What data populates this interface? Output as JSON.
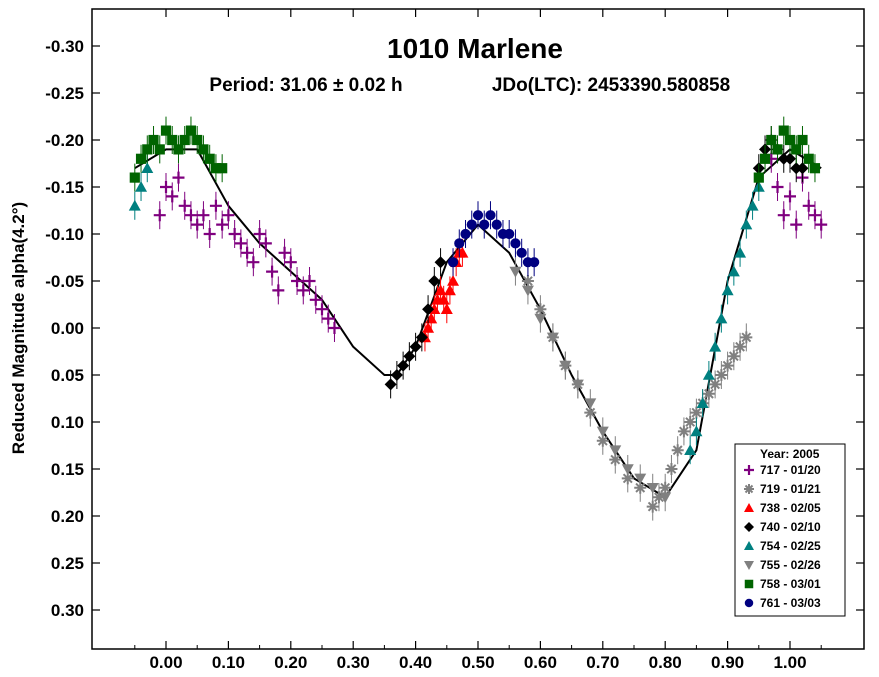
{
  "chart_data": {
    "type": "scatter",
    "title": "1010 Marlene",
    "subtitle_period": "Period: 31.06 ± 0.02 h",
    "subtitle_epoch": "JDo(LTC): 2453390.580858",
    "xlabel": "",
    "ylabel": "Reduced Magnitude alpha(4.2°)",
    "xlim": [
      -0.06,
      1.07
    ],
    "ylim": [
      0.33,
      -0.33
    ],
    "y_inverted": true,
    "x_ticks": [
      "0.00",
      "0.10",
      "0.20",
      "0.30",
      "0.40",
      "0.50",
      "0.60",
      "0.70",
      "0.80",
      "0.90",
      "1.00"
    ],
    "x_tick_values": [
      0,
      0.1,
      0.2,
      0.3,
      0.4,
      0.5,
      0.6,
      0.7,
      0.8,
      0.9,
      1.0
    ],
    "y_ticks": [
      "-0.30",
      "-0.25",
      "-0.20",
      "-0.15",
      "-0.10",
      "-0.05",
      "0.00",
      "0.05",
      "0.10",
      "0.15",
      "0.20",
      "0.25",
      "0.30"
    ],
    "y_tick_values": [
      -0.3,
      -0.25,
      -0.2,
      -0.15,
      -0.1,
      -0.05,
      0.0,
      0.05,
      0.1,
      0.15,
      0.2,
      0.25,
      0.3
    ],
    "grid": false,
    "legend_position": "bottom-right",
    "legend_title": "Year: 2005",
    "fit_curve": {
      "x": [
        -0.05,
        0.0,
        0.05,
        0.1,
        0.15,
        0.2,
        0.25,
        0.3,
        0.35,
        0.37,
        0.4,
        0.45,
        0.5,
        0.55,
        0.6,
        0.65,
        0.7,
        0.75,
        0.8,
        0.85,
        0.9,
        0.95,
        1.0,
        1.05
      ],
      "y": [
        -0.17,
        -0.19,
        -0.19,
        -0.13,
        -0.09,
        -0.06,
        -0.03,
        0.02,
        0.05,
        0.05,
        0.02,
        -0.07,
        -0.11,
        -0.08,
        -0.02,
        0.05,
        0.11,
        0.16,
        0.18,
        0.13,
        -0.05,
        -0.16,
        -0.19,
        -0.17
      ]
    },
    "series": [
      {
        "name": "717 - 01/20",
        "marker": "plus",
        "color": "#7f007f",
        "x": [
          -0.01,
          0.0,
          0.01,
          0.02,
          0.03,
          0.04,
          0.05,
          0.06,
          0.07,
          0.08,
          0.09,
          0.1,
          0.11,
          0.12,
          0.13,
          0.14,
          0.15,
          0.16,
          0.17,
          0.18,
          0.19,
          0.2,
          0.21,
          0.22,
          0.23,
          0.24,
          0.25,
          0.26,
          0.27,
          0.97,
          0.98,
          0.99,
          1.0,
          1.01,
          1.02,
          1.03,
          1.04,
          1.05
        ],
        "y": [
          -0.12,
          -0.15,
          -0.14,
          -0.16,
          -0.13,
          -0.12,
          -0.11,
          -0.12,
          -0.1,
          -0.13,
          -0.11,
          -0.12,
          -0.1,
          -0.09,
          -0.08,
          -0.07,
          -0.1,
          -0.09,
          -0.06,
          -0.04,
          -0.08,
          -0.07,
          -0.05,
          -0.04,
          -0.05,
          -0.03,
          -0.02,
          -0.01,
          0.0,
          -0.18,
          -0.15,
          -0.12,
          -0.14,
          -0.11,
          -0.16,
          -0.13,
          -0.12,
          -0.11
        ]
      },
      {
        "name": "719 - 01/21",
        "marker": "asterisk",
        "color": "#808080",
        "x": [
          0.58,
          0.6,
          0.62,
          0.64,
          0.66,
          0.68,
          0.7,
          0.72,
          0.74,
          0.76,
          0.78,
          0.79,
          0.8,
          0.81,
          0.82,
          0.83,
          0.84,
          0.85,
          0.86,
          0.87,
          0.88,
          0.89,
          0.9,
          0.91,
          0.92,
          0.93
        ],
        "y": [
          -0.05,
          -0.02,
          0.01,
          0.04,
          0.06,
          0.09,
          0.12,
          0.14,
          0.16,
          0.17,
          0.19,
          0.18,
          0.17,
          0.15,
          0.13,
          0.11,
          0.1,
          0.09,
          0.08,
          0.07,
          0.06,
          0.05,
          0.04,
          0.03,
          0.02,
          0.01
        ]
      },
      {
        "name": "738 - 02/05",
        "marker": "triangle-up",
        "color": "#ff0000",
        "x": [
          0.415,
          0.42,
          0.425,
          0.43,
          0.435,
          0.44,
          0.445,
          0.45,
          0.455,
          0.46,
          0.465,
          0.47,
          0.475
        ],
        "y": [
          0.01,
          0.0,
          -0.01,
          -0.02,
          -0.03,
          -0.04,
          -0.03,
          -0.02,
          -0.04,
          -0.05,
          -0.07,
          -0.08,
          -0.08
        ]
      },
      {
        "name": "740 - 02/10",
        "marker": "diamond",
        "color": "#000000",
        "x": [
          0.36,
          0.37,
          0.38,
          0.39,
          0.4,
          0.41,
          0.42,
          0.43,
          0.44,
          0.95,
          0.96,
          0.97,
          0.98,
          0.99,
          1.0,
          1.01,
          1.02
        ],
        "y": [
          0.06,
          0.05,
          0.04,
          0.03,
          0.02,
          0.01,
          -0.02,
          -0.05,
          -0.07,
          -0.17,
          -0.19,
          -0.2,
          -0.19,
          -0.18,
          -0.18,
          -0.17,
          -0.17
        ]
      },
      {
        "name": "754 - 02/25",
        "marker": "triangle-up",
        "color": "#008080",
        "x": [
          -0.05,
          -0.04,
          -0.03,
          0.84,
          0.85,
          0.86,
          0.87,
          0.88,
          0.89,
          0.9,
          0.91,
          0.92,
          0.93,
          0.94,
          0.95
        ],
        "y": [
          -0.13,
          -0.15,
          -0.17,
          0.13,
          0.11,
          0.08,
          0.05,
          0.02,
          -0.01,
          -0.04,
          -0.06,
          -0.08,
          -0.11,
          -0.13,
          -0.15
        ]
      },
      {
        "name": "755 - 02/26",
        "marker": "triangle-down",
        "color": "#808080",
        "x": [
          0.56,
          0.58,
          0.6,
          0.62,
          0.64,
          0.66,
          0.68,
          0.7,
          0.72,
          0.74,
          0.76,
          0.78,
          0.8
        ],
        "y": [
          -0.06,
          -0.04,
          -0.01,
          0.01,
          0.04,
          0.06,
          0.08,
          0.11,
          0.13,
          0.15,
          0.16,
          0.17,
          0.18
        ]
      },
      {
        "name": "758 - 03/01",
        "marker": "square",
        "color": "#006400",
        "x": [
          -0.05,
          -0.04,
          -0.03,
          -0.02,
          -0.01,
          0.0,
          0.01,
          0.02,
          0.03,
          0.04,
          0.05,
          0.06,
          0.07,
          0.08,
          0.09,
          0.95,
          0.96,
          0.97,
          0.98,
          0.99,
          1.0,
          1.01,
          1.02,
          1.03,
          1.04
        ],
        "y": [
          -0.16,
          -0.18,
          -0.19,
          -0.2,
          -0.19,
          -0.21,
          -0.2,
          -0.19,
          -0.2,
          -0.21,
          -0.2,
          -0.19,
          -0.18,
          -0.17,
          -0.17,
          -0.16,
          -0.18,
          -0.2,
          -0.19,
          -0.21,
          -0.2,
          -0.19,
          -0.2,
          -0.18,
          -0.17
        ]
      },
      {
        "name": "761 - 03/03",
        "marker": "circle",
        "color": "#000080",
        "x": [
          0.46,
          0.47,
          0.48,
          0.49,
          0.5,
          0.51,
          0.52,
          0.53,
          0.54,
          0.55,
          0.56,
          0.57,
          0.58,
          0.59
        ],
        "y": [
          -0.07,
          -0.09,
          -0.1,
          -0.11,
          -0.12,
          -0.11,
          -0.12,
          -0.11,
          -0.1,
          -0.1,
          -0.09,
          -0.08,
          -0.07,
          -0.07
        ]
      }
    ]
  }
}
